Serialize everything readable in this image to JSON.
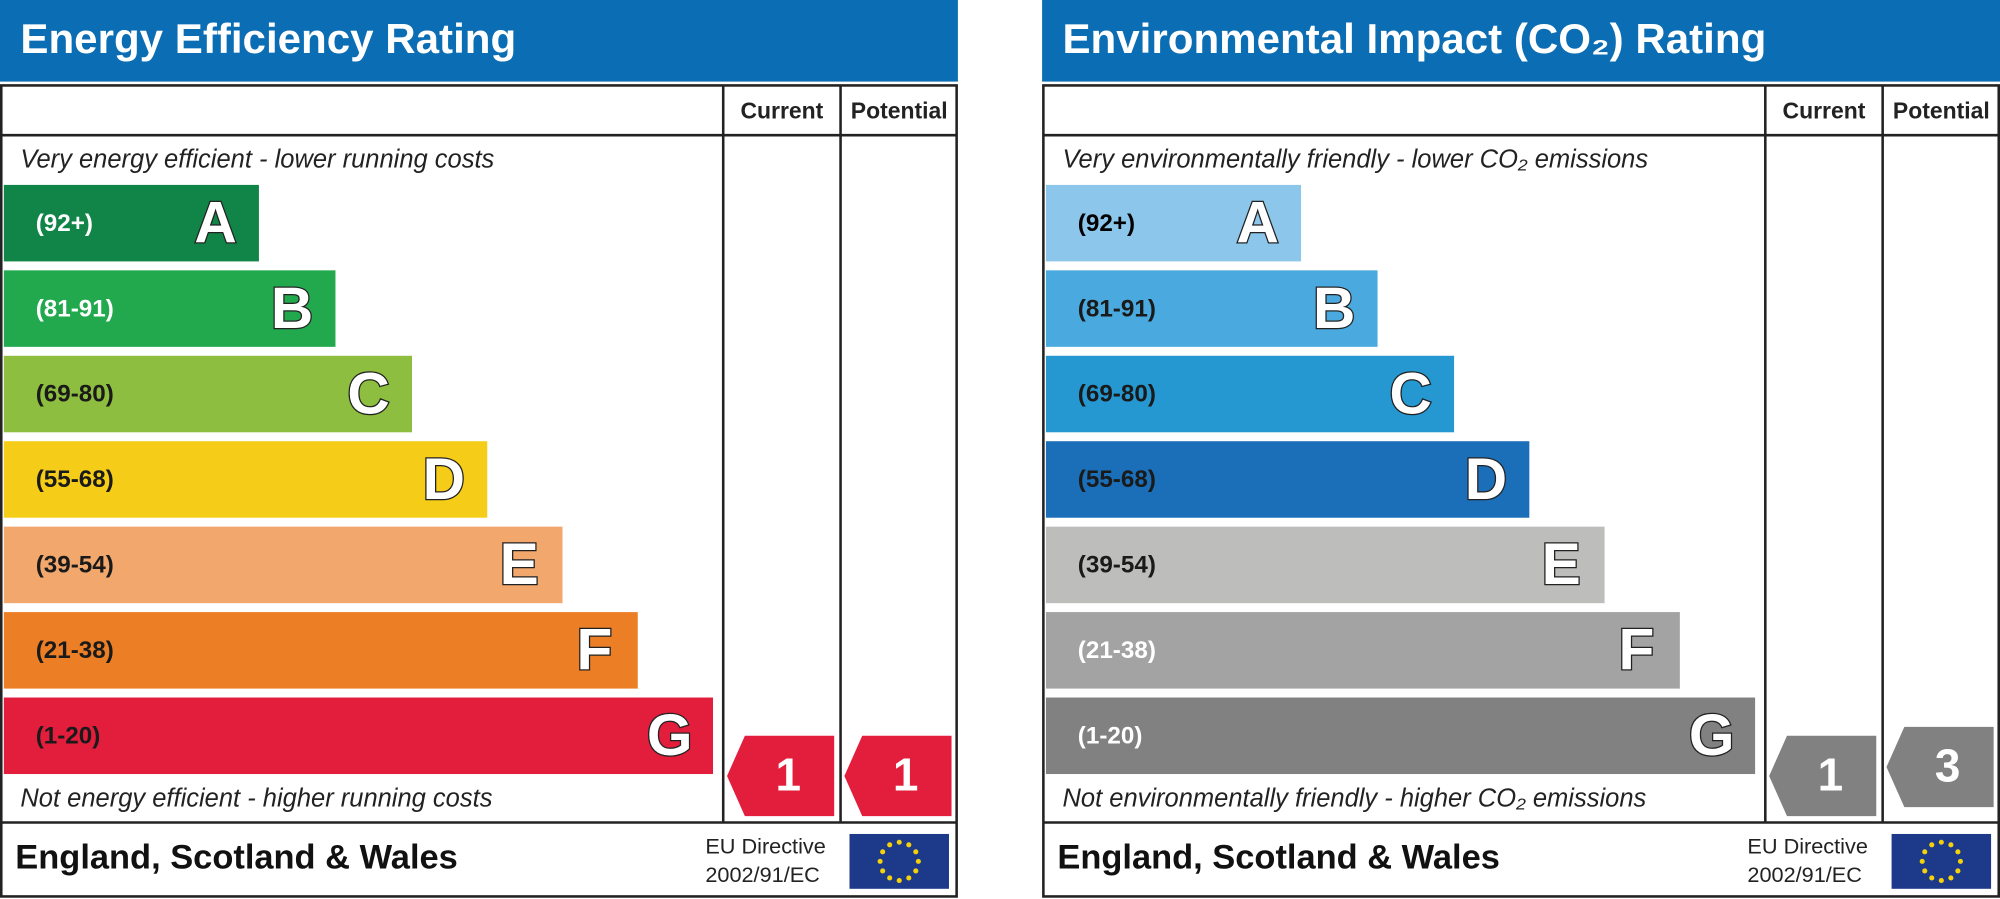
{
  "panels": [
    {
      "title": "Energy Efficiency Rating",
      "columns": [
        "Current",
        "Potential"
      ],
      "top_note": "Very energy efficient - lower running costs",
      "bottom_note": "Not energy efficient - higher running costs",
      "bands": [
        {
          "range": "(92+)",
          "letter": "A",
          "color": "#118547",
          "text_color": "#ffffff"
        },
        {
          "range": "(81-91)",
          "letter": "B",
          "color": "#22a94e",
          "text_color": "#ffffff"
        },
        {
          "range": "(69-80)",
          "letter": "C",
          "color": "#8dbe3f",
          "text_color": "#1a1a1a"
        },
        {
          "range": "(55-68)",
          "letter": "D",
          "color": "#f5cd18",
          "text_color": "#1a1a1a"
        },
        {
          "range": "(39-54)",
          "letter": "E",
          "color": "#f2a76d",
          "text_color": "#1a1a1a"
        },
        {
          "range": "(21-38)",
          "letter": "F",
          "color": "#ec7f26",
          "text_color": "#1a1a1a"
        },
        {
          "range": "(1-20)",
          "letter": "G",
          "color": "#e31d3c",
          "text_color": "#1a1a1a"
        }
      ],
      "current": {
        "value": 1,
        "color": "#e31d3c"
      },
      "potential": {
        "value": 1,
        "color": "#e31d3c"
      },
      "region": "England, Scotland & Wales",
      "directive": [
        "EU Directive",
        "2002/91/EC"
      ]
    },
    {
      "title": "Environmental Impact (CO₂) Rating",
      "columns": [
        "Current",
        "Potential"
      ],
      "top_note": "Very environmentally friendly - lower CO₂ emissions",
      "bottom_note": "Not environmentally friendly - higher CO₂ emissions",
      "bands": [
        {
          "range": "(92+)",
          "letter": "A",
          "color": "#8cc6ea",
          "text_color": "#000000"
        },
        {
          "range": "(81-91)",
          "letter": "B",
          "color": "#4aa9de",
          "text_color": "#1a1a1a"
        },
        {
          "range": "(69-80)",
          "letter": "C",
          "color": "#2598d2",
          "text_color": "#1a1a1a"
        },
        {
          "range": "(55-68)",
          "letter": "D",
          "color": "#1a6fb8",
          "text_color": "#1a1a1a"
        },
        {
          "range": "(39-54)",
          "letter": "E",
          "color": "#bdbdbb",
          "text_color": "#1a1a1a"
        },
        {
          "range": "(21-38)",
          "letter": "F",
          "color": "#a3a3a3",
          "text_color": "#ffffff"
        },
        {
          "range": "(1-20)",
          "letter": "G",
          "color": "#818181",
          "text_color": "#ffffff"
        }
      ],
      "current": {
        "value": 1,
        "color": "#818181"
      },
      "potential": {
        "value": 3,
        "color": "#818181"
      },
      "region": "England, Scotland & Wales",
      "directive": [
        "EU Directive",
        "2002/91/EC"
      ]
    }
  ]
}
